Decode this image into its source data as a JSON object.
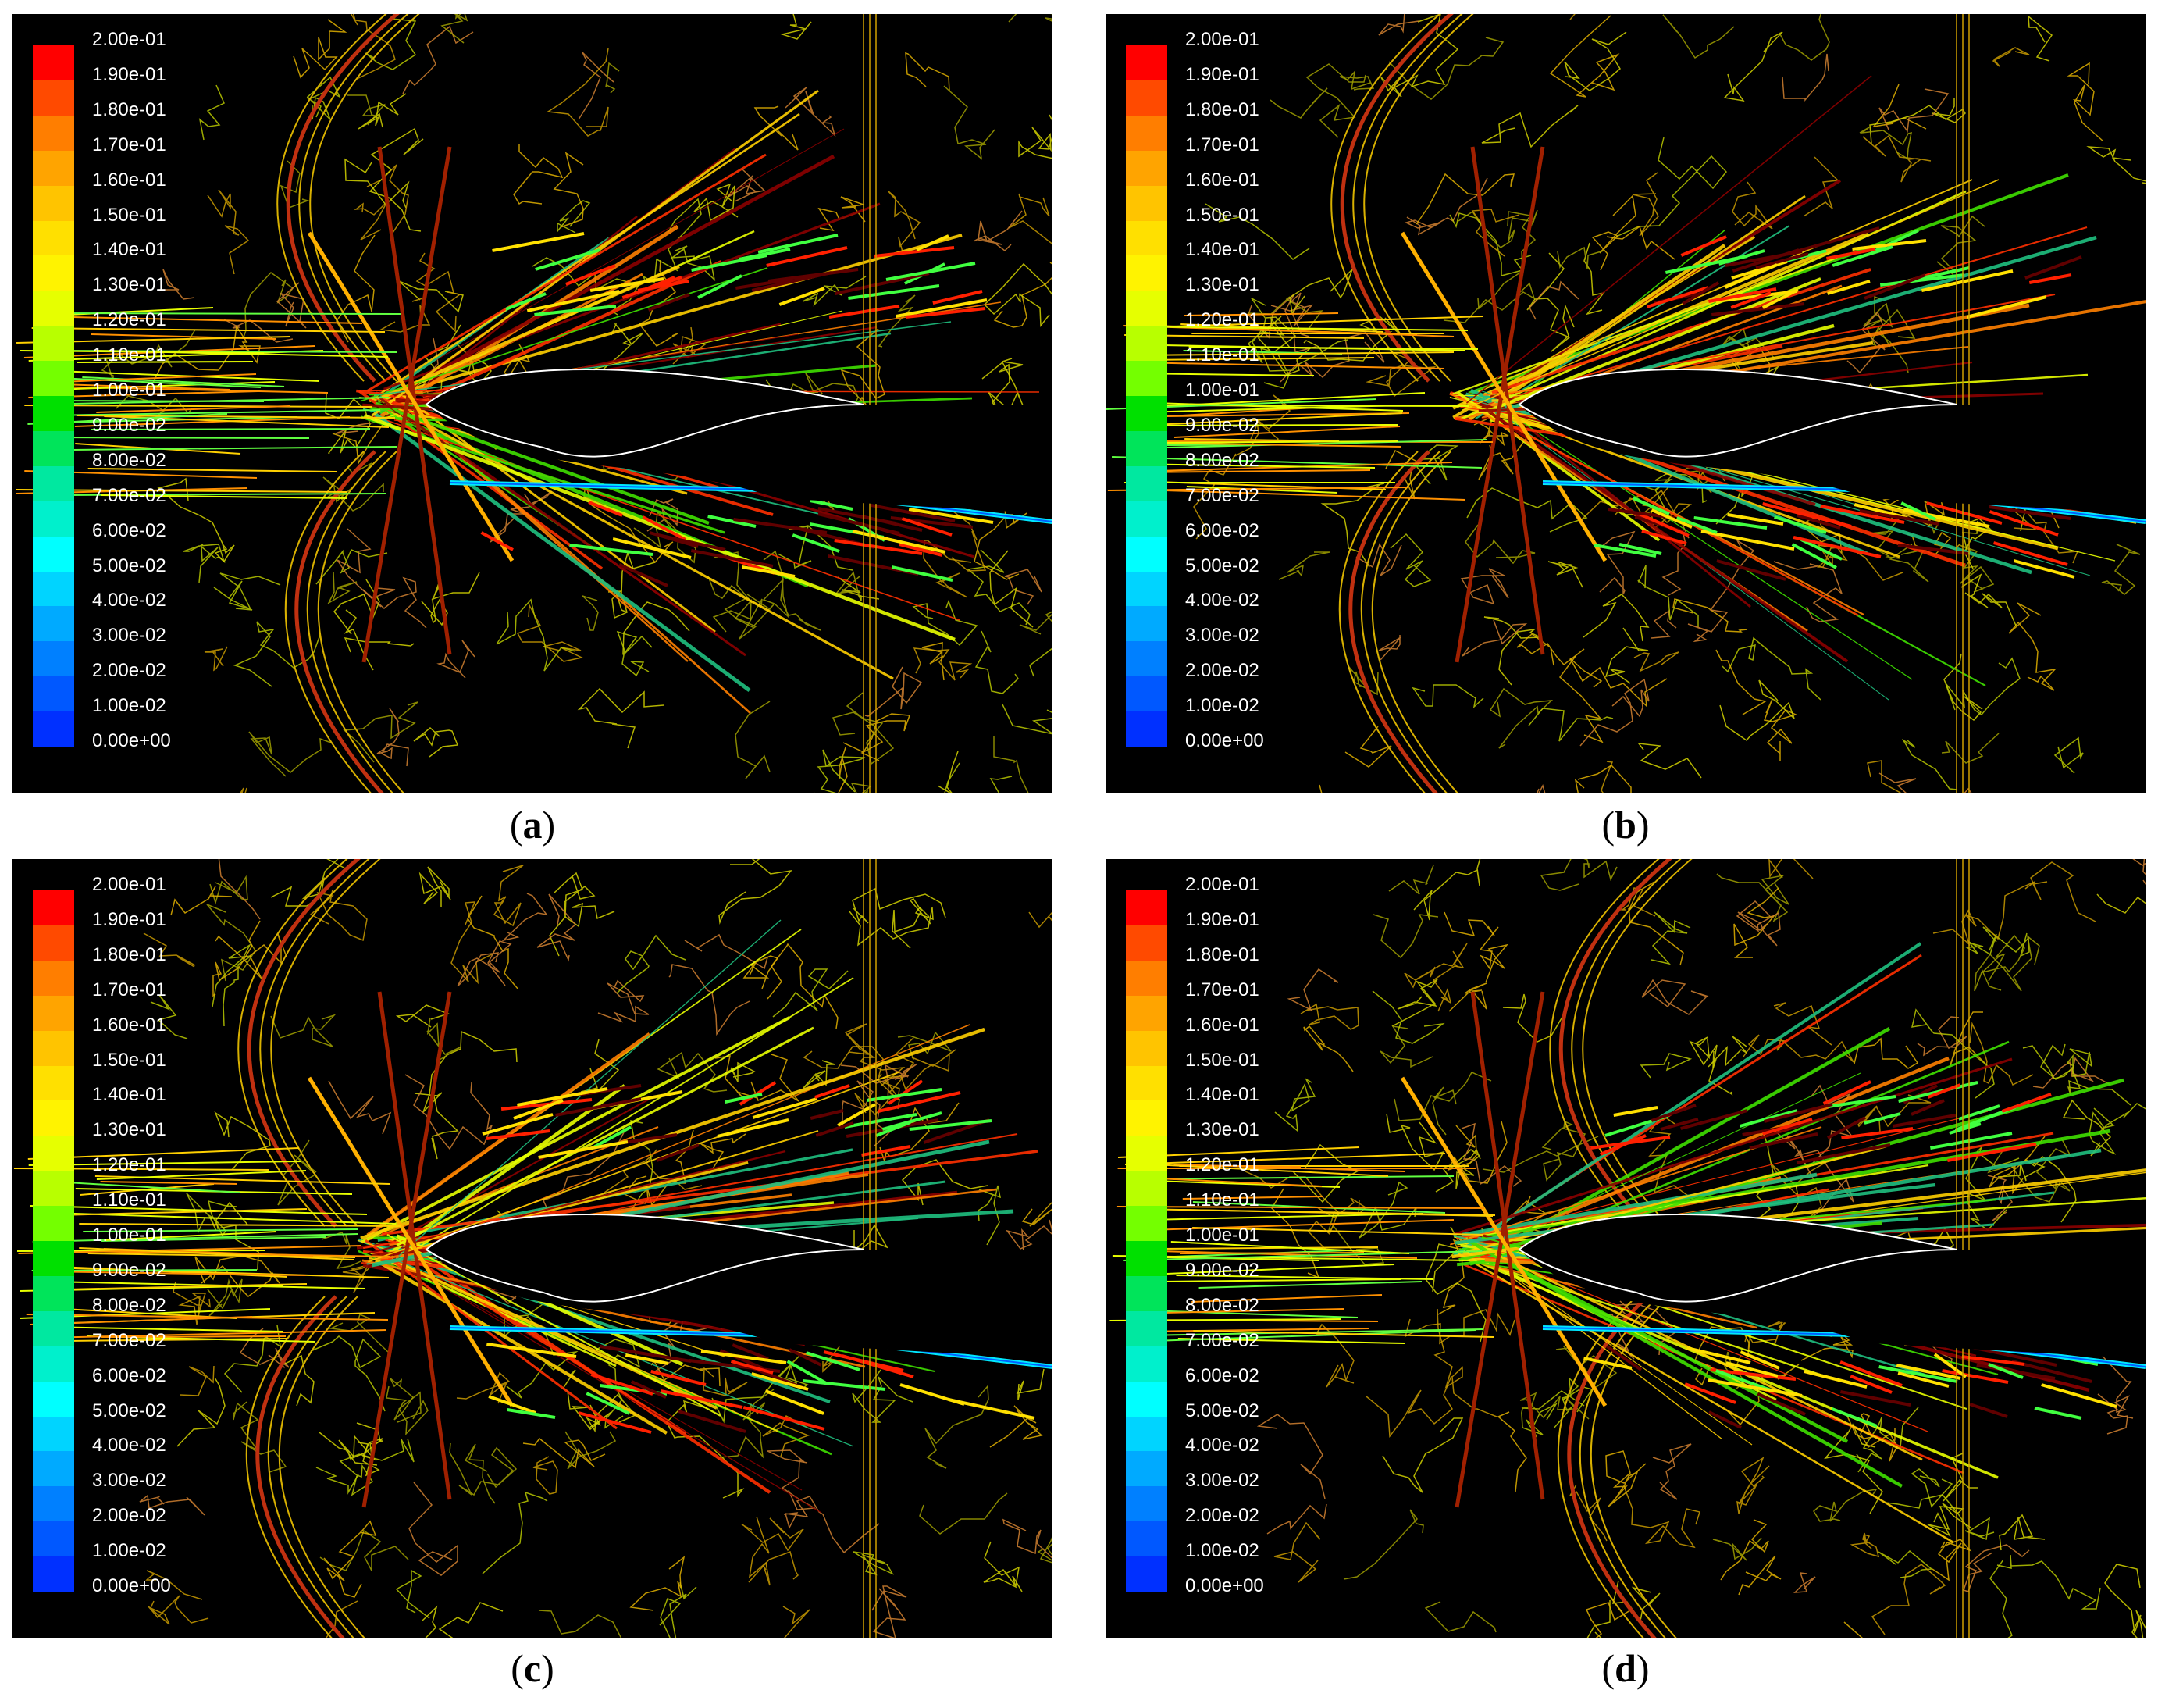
{
  "legend": {
    "labels": [
      "2.00e-01",
      "1.90e-01",
      "1.80e-01",
      "1.70e-01",
      "1.60e-01",
      "1.50e-01",
      "1.40e-01",
      "1.30e-01",
      "1.20e-01",
      "1.10e-01",
      "1.00e-01",
      "9.00e-02",
      "8.00e-02",
      "7.00e-02",
      "6.00e-02",
      "5.00e-02",
      "4.00e-02",
      "3.00e-02",
      "2.00e-02",
      "1.00e-02",
      "0.00e+00"
    ],
    "colors": [
      "#ff0000",
      "#ff4a00",
      "#ff7e00",
      "#ffa400",
      "#ffc400",
      "#ffe000",
      "#fff300",
      "#e6ff00",
      "#b8ff00",
      "#74ff00",
      "#00e000",
      "#00e45a",
      "#00e8a0",
      "#00f0cc",
      "#00ffff",
      "#00d4ff",
      "#00aaff",
      "#0080ff",
      "#0058ff",
      "#0030ff",
      "#0000ff"
    ]
  },
  "panels": [
    {
      "id": "a",
      "caption_letter": "a"
    },
    {
      "id": "b",
      "caption_letter": "b"
    },
    {
      "id": "c",
      "caption_letter": "c"
    },
    {
      "id": "d",
      "caption_letter": "d"
    }
  ]
}
